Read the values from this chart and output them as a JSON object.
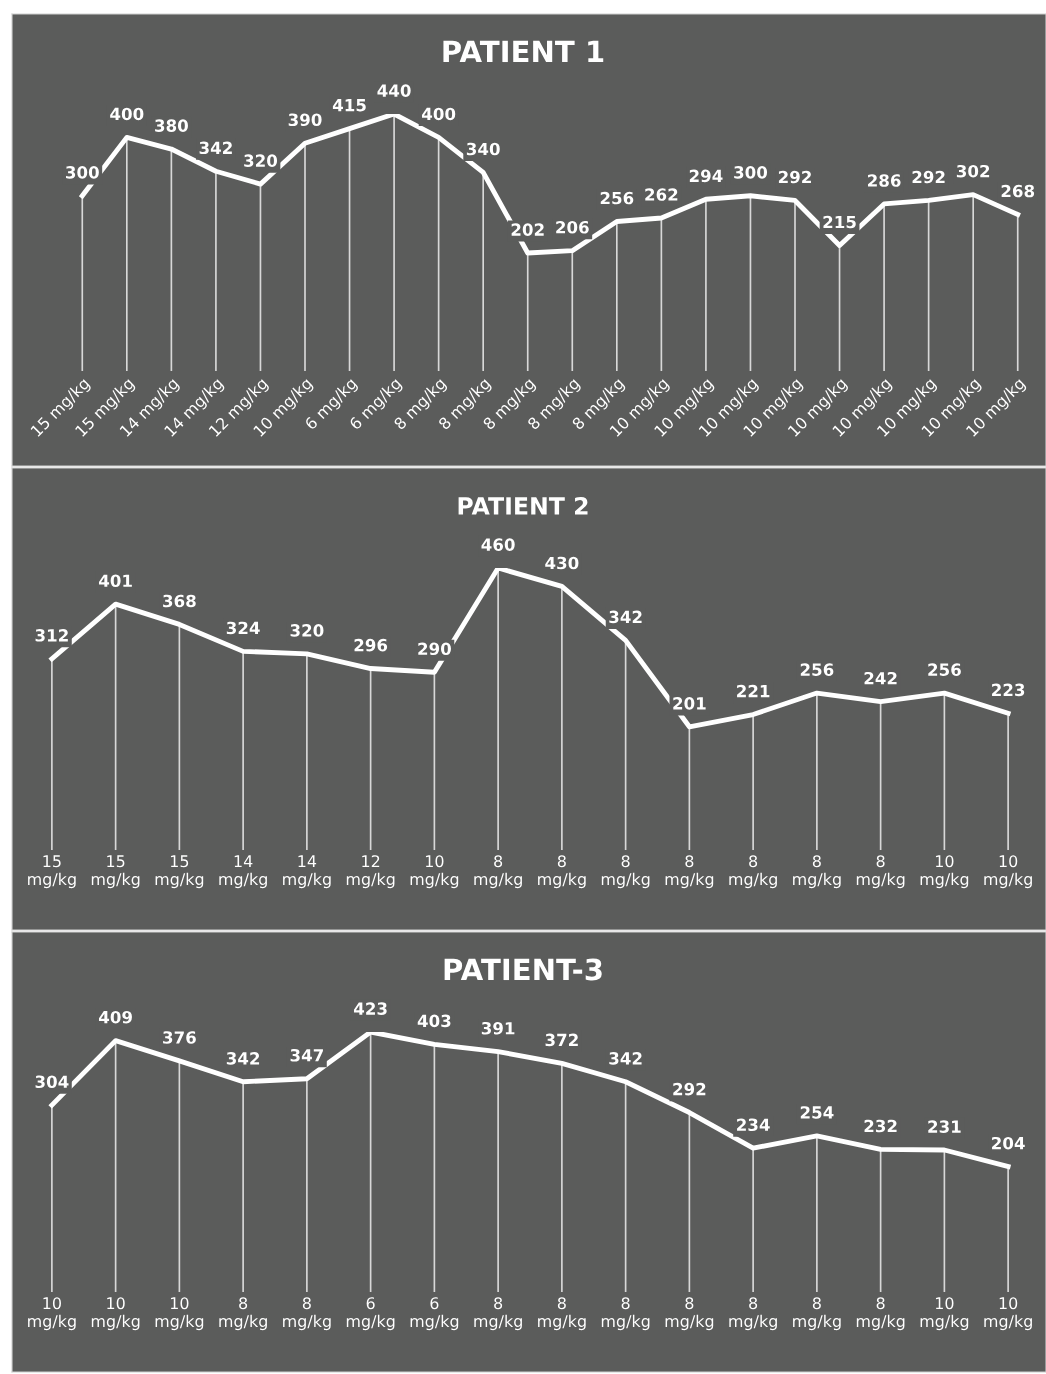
{
  "chart_data": [
    {
      "type": "line",
      "title": "PATIENT 1",
      "grid": "x",
      "data_labels": true,
      "marker": "none",
      "line_style": "solid",
      "categories": [
        "15 mg/kg",
        "15 mg/kg",
        "14 mg/kg",
        "14 mg/kg",
        "12 mg/kg",
        "10 mg/kg",
        "6 mg/kg",
        "6 mg/kg",
        "8 mg/kg",
        "8 mg/kg",
        "8 mg/kg",
        "8 mg/kg",
        "8 mg/kg",
        "10 mg/kg",
        "10 mg/kg",
        "10 mg/kg",
        "10 mg/kg",
        "10 mg/kg",
        "10 mg/kg",
        "10 mg/kg",
        "10 mg/kg",
        "10 mg/kg"
      ],
      "series": [
        {
          "color": "#ffffff",
          "values": [
            300,
            400,
            380,
            342,
            320,
            390,
            415,
            440,
            400,
            340,
            202,
            206,
            256,
            262,
            294,
            300,
            292,
            215,
            286,
            292,
            302,
            268
          ]
        }
      ]
    },
    {
      "type": "line",
      "title": "PATIENT 2",
      "grid": "x",
      "data_labels": true,
      "marker": "none",
      "line_style": "solid",
      "categories": [
        "15 mg/kg",
        "15 mg/kg",
        "15 mg/kg",
        "14 mg/kg",
        "14 mg/kg",
        "12 mg/kg",
        "10 mg/kg",
        "8 mg/kg",
        "8 mg/kg",
        "8 mg/kg",
        "8 mg/kg",
        "8 mg/kg",
        "8 mg/kg",
        "8 mg/kg",
        "10 mg/kg",
        "10 mg/kg"
      ],
      "series": [
        {
          "color": "#ffffff",
          "values": [
            312,
            401,
            368,
            324,
            320,
            296,
            290,
            460,
            430,
            342,
            201,
            221,
            256,
            242,
            256,
            223
          ]
        }
      ]
    },
    {
      "type": "line",
      "title": "PATIENT-3",
      "grid": "x",
      "data_labels": true,
      "marker": "none",
      "line_style": "solid",
      "categories": [
        "10 mg/kg",
        "10 mg/kg",
        "10 mg/kg",
        "8 mg/kg",
        "8 mg/kg",
        "6 mg/kg",
        "6 mg/kg",
        "8 mg/kg",
        "8 mg/kg",
        "8 mg/kg",
        "8 mg/kg",
        "8 mg/kg",
        "8 mg/kg",
        "8 mg/kg",
        "10 mg/kg",
        "10 mg/kg"
      ],
      "series": [
        {
          "color": "#ffffff",
          "values": [
            304,
            409,
            376,
            342,
            347,
            423,
            403,
            391,
            372,
            342,
            292,
            234,
            254,
            232,
            231,
            204
          ]
        }
      ]
    }
  ]
}
